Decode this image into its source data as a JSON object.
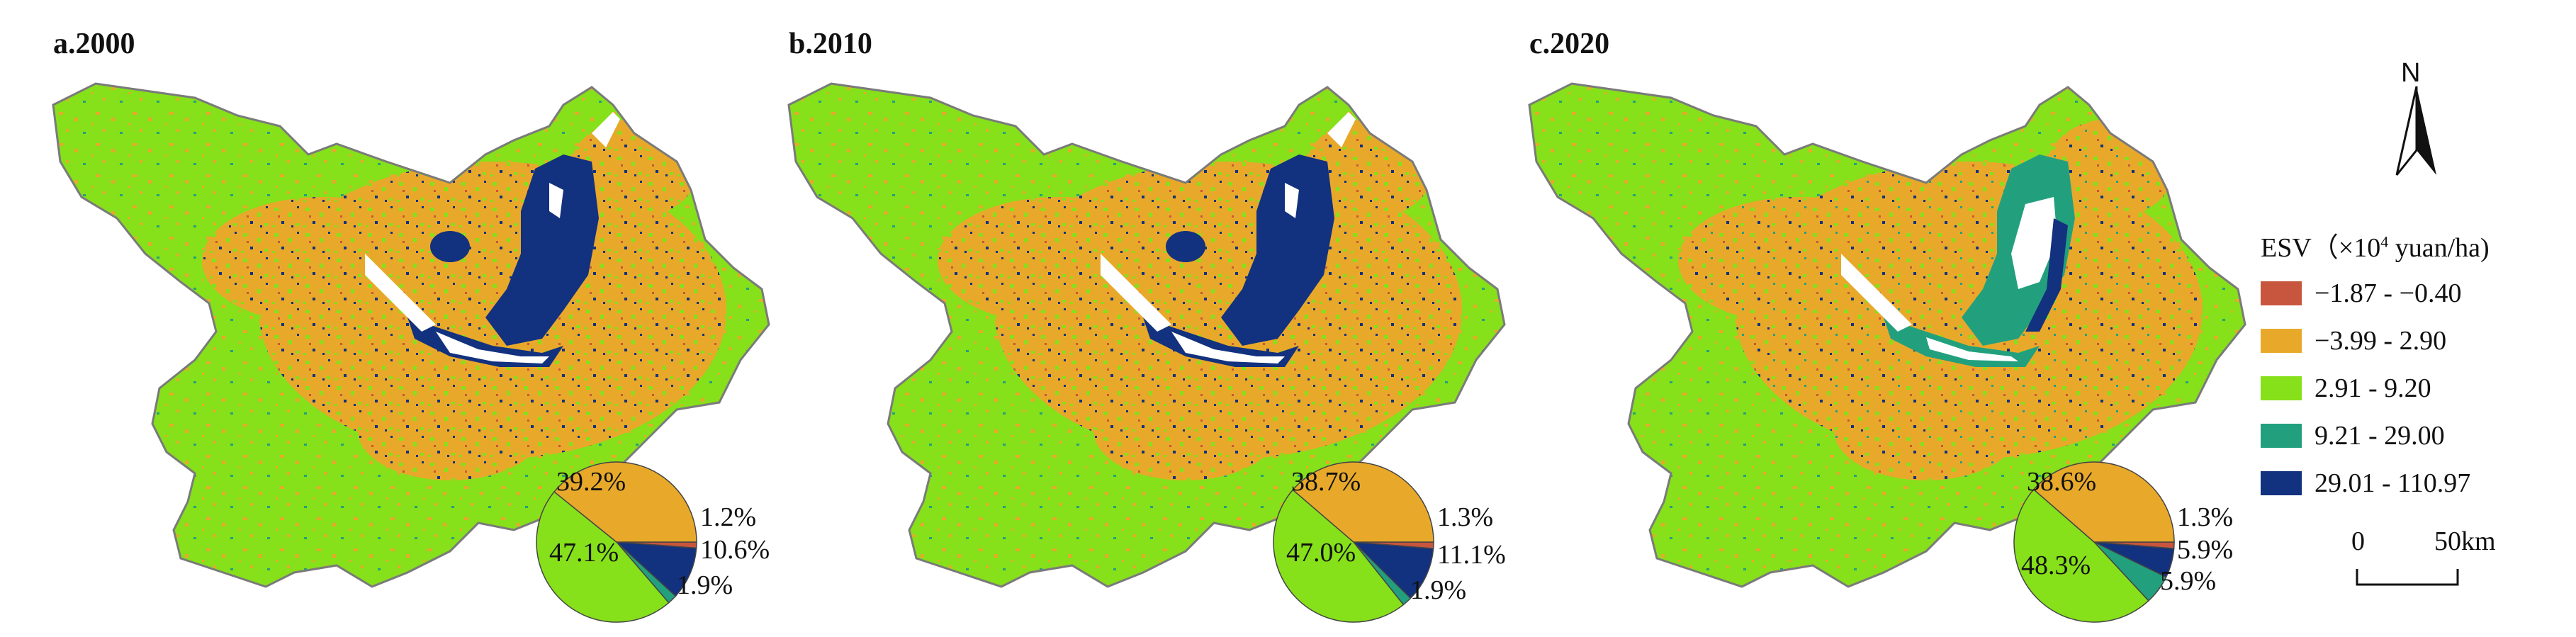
{
  "panels": [
    {
      "title": "a.2000",
      "pie": [
        {
          "cls": "c1",
          "pct": 1.2,
          "label": "1.2%"
        },
        {
          "cls": "c5",
          "pct": 10.6,
          "label": "10.6%"
        },
        {
          "cls": "c4",
          "pct": 1.9,
          "label": "1.9%"
        },
        {
          "cls": "c3",
          "pct": 47.1,
          "label": "47.1%"
        },
        {
          "cls": "c2",
          "pct": 39.2,
          "label": "39.2%"
        }
      ]
    },
    {
      "title": "b.2010",
      "pie": [
        {
          "cls": "c1",
          "pct": 1.3,
          "label": "1.3%"
        },
        {
          "cls": "c5",
          "pct": 11.1,
          "label": "11.1%"
        },
        {
          "cls": "c4",
          "pct": 1.9,
          "label": "1.9%"
        },
        {
          "cls": "c3",
          "pct": 47.0,
          "label": "47.0%"
        },
        {
          "cls": "c2",
          "pct": 38.7,
          "label": "38.7%"
        }
      ]
    },
    {
      "title": "c.2020",
      "pie": [
        {
          "cls": "c1",
          "pct": 1.3,
          "label": "1.3%"
        },
        {
          "cls": "c5",
          "pct": 5.9,
          "label": "5.9%"
        },
        {
          "cls": "c4",
          "pct": 5.9,
          "label": "5.9%"
        },
        {
          "cls": "c3",
          "pct": 48.3,
          "label": "48.3%"
        },
        {
          "cls": "c2",
          "pct": 38.6,
          "label": "38.6%"
        }
      ]
    }
  ],
  "legend": {
    "title_prefix": "ESV（×10",
    "title_sup": "4",
    "title_suffix": " yuan/ha)",
    "classes": [
      {
        "id": "c1",
        "label": "−1.87 - −0.40",
        "color": "#c8553d"
      },
      {
        "id": "c2",
        "label": "−3.99 - 2.90",
        "color": "#e8a92a"
      },
      {
        "id": "c3",
        "label": "2.91 - 9.20",
        "color": "#86e01a"
      },
      {
        "id": "c4",
        "label": "9.21 - 29.00",
        "color": "#22a07e"
      },
      {
        "id": "c5",
        "label": "29.01 - 110.97",
        "color": "#12317e"
      }
    ]
  },
  "north_arrow": {
    "label": "N"
  },
  "scale_bar": {
    "zero": "0",
    "distance": "50km"
  },
  "colors": {
    "boundary": "#7a7a7a",
    "background": "#ffffff"
  }
}
